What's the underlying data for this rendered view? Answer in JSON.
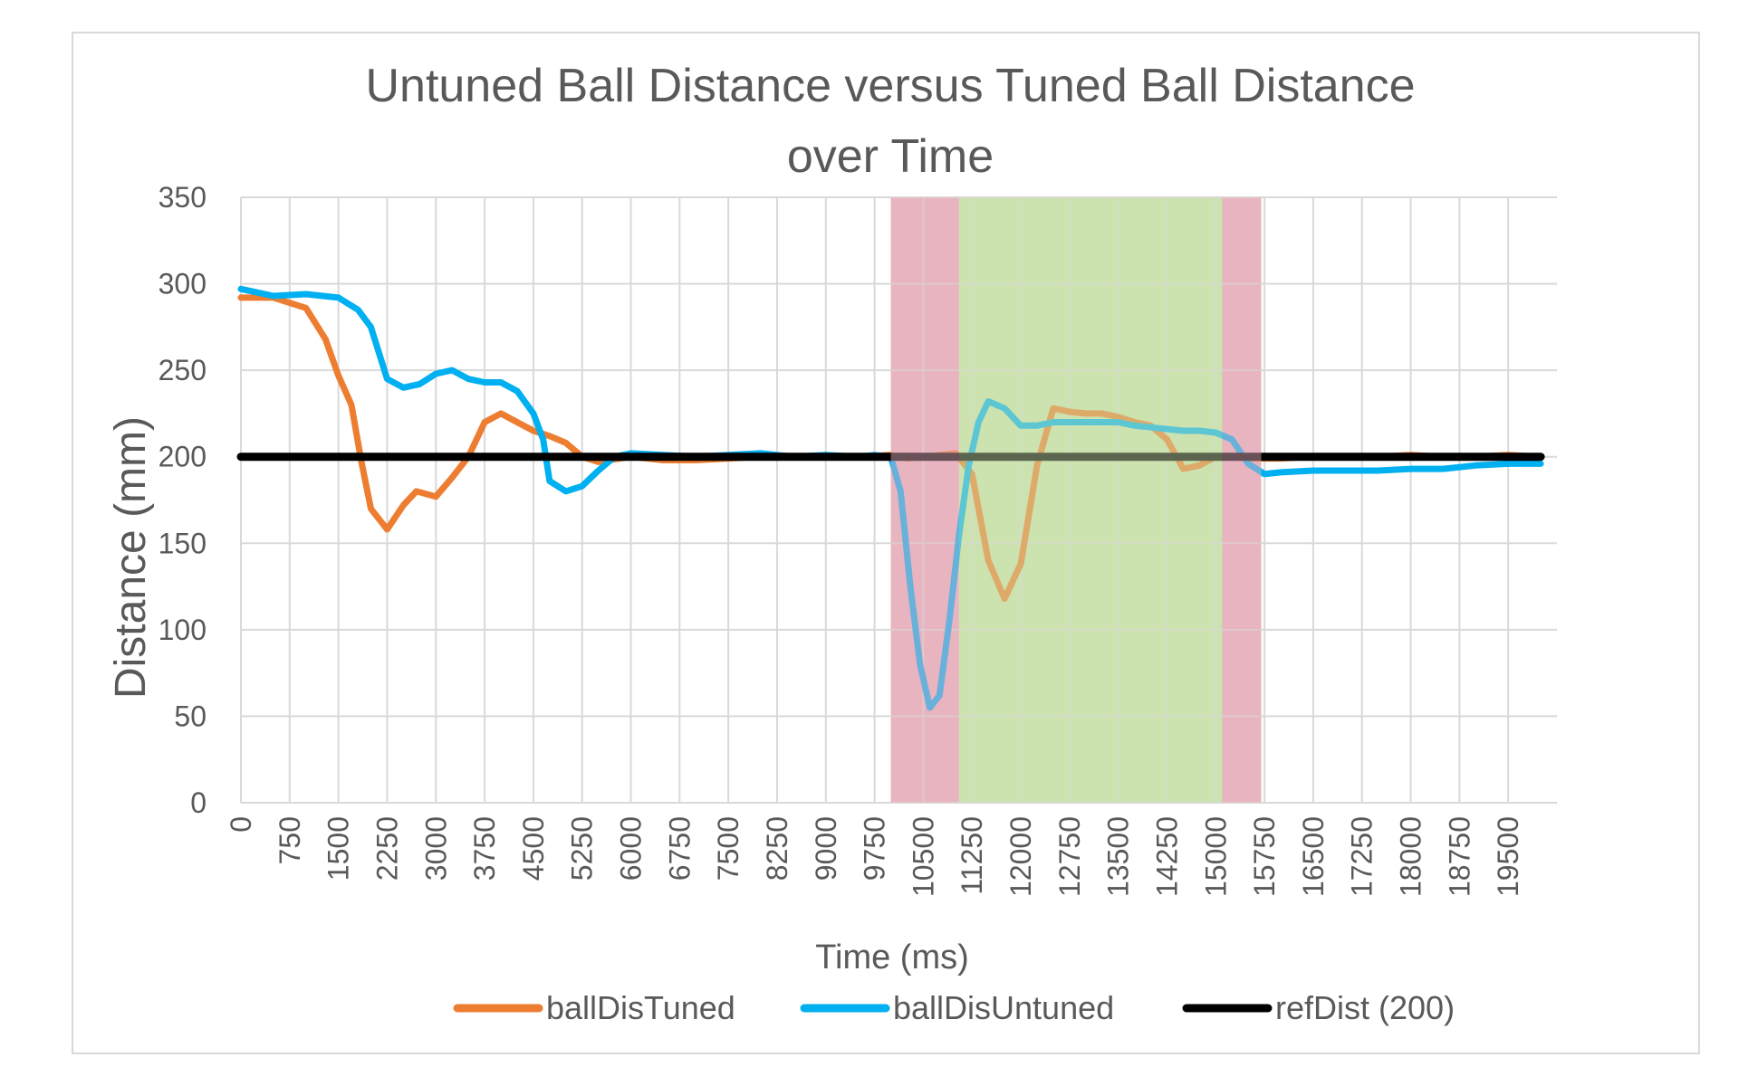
{
  "chart_data": {
    "type": "line",
    "title": "Untuned Ball Distance versus Tuned Ball Distance over Time",
    "title_lines": [
      "Untuned Ball Distance versus Tuned Ball Distance",
      "over Time"
    ],
    "xlabel": "Time (ms)",
    "ylabel": "Distance (mm)",
    "xlim": [
      0,
      20250
    ],
    "ylim": [
      0,
      350
    ],
    "x_ticks": [
      0,
      750,
      1500,
      2250,
      3000,
      3750,
      4500,
      5250,
      6000,
      6750,
      7500,
      8250,
      9000,
      9750,
      10500,
      11250,
      12000,
      12750,
      13500,
      14250,
      15000,
      15750,
      16500,
      17250,
      18000,
      18750,
      19500
    ],
    "y_ticks": [
      0,
      50,
      100,
      150,
      200,
      250,
      300,
      350
    ],
    "grid": true,
    "legend": "bottom",
    "highlight_regions": [
      {
        "x0": 10000,
        "x1": 11050,
        "color": "#e8b4c0"
      },
      {
        "x0": 11050,
        "x1": 15100,
        "color": "#cde2b0"
      },
      {
        "x0": 15100,
        "x1": 15700,
        "color": "#e8b4c0"
      }
    ],
    "series": [
      {
        "name": "ballDisTuned",
        "color": "#ed7d31",
        "x": [
          0,
          500,
          1000,
          1300,
          1500,
          1700,
          1850,
          2000,
          2250,
          2500,
          2700,
          3000,
          3250,
          3500,
          3750,
          4000,
          4250,
          4500,
          4750,
          5000,
          5250,
          5500,
          6000,
          6500,
          7000,
          7500,
          8000,
          8500,
          9000,
          9500,
          10000,
          10250,
          10500,
          10750,
          11000,
          11250,
          11500,
          11750,
          12000,
          12250,
          12500,
          12750,
          13000,
          13250,
          13500,
          13750,
          14000,
          14250,
          14500,
          14750,
          15000,
          15250,
          15500,
          16000,
          16500,
          17000,
          17500,
          18000,
          18500,
          19000,
          19500,
          20000
        ],
        "y": [
          292,
          292,
          286,
          268,
          247,
          230,
          198,
          170,
          158,
          172,
          180,
          177,
          188,
          200,
          220,
          225,
          220,
          215,
          212,
          208,
          200,
          197,
          200,
          198,
          198,
          199,
          200,
          200,
          200,
          200,
          201,
          199,
          200,
          201,
          202,
          190,
          140,
          118,
          138,
          195,
          228,
          226,
          225,
          225,
          223,
          220,
          218,
          210,
          193,
          195,
          200,
          200,
          199,
          199,
          200,
          200,
          200,
          201,
          200,
          200,
          201,
          200
        ]
      },
      {
        "name": "ballDisUntuned",
        "color": "#00b0f0",
        "x": [
          0,
          500,
          1000,
          1500,
          1800,
          2000,
          2250,
          2500,
          2750,
          3000,
          3250,
          3500,
          3750,
          4000,
          4250,
          4500,
          4650,
          4750,
          5000,
          5250,
          5500,
          5750,
          6000,
          6500,
          7000,
          7500,
          8000,
          8500,
          9000,
          9500,
          9750,
          10000,
          10150,
          10300,
          10450,
          10600,
          10750,
          10900,
          11050,
          11200,
          11350,
          11500,
          11750,
          12000,
          12250,
          12500,
          12750,
          13000,
          13250,
          13500,
          13750,
          14000,
          14250,
          14500,
          14750,
          15000,
          15250,
          15500,
          15750,
          16000,
          16500,
          17000,
          17500,
          18000,
          18500,
          19000,
          19500,
          20000
        ],
        "y": [
          297,
          293,
          294,
          292,
          285,
          275,
          245,
          240,
          242,
          248,
          250,
          245,
          243,
          243,
          238,
          225,
          210,
          186,
          180,
          183,
          192,
          200,
          202,
          201,
          200,
          201,
          202,
          200,
          201,
          200,
          201,
          200,
          180,
          125,
          80,
          55,
          62,
          105,
          155,
          195,
          220,
          232,
          228,
          218,
          218,
          220,
          220,
          220,
          220,
          220,
          218,
          217,
          216,
          215,
          215,
          214,
          210,
          196,
          190,
          191,
          192,
          192,
          192,
          193,
          193,
          195,
          196,
          196
        ]
      },
      {
        "name": "refDist (200)",
        "color": "#000000",
        "x": [
          0,
          20000
        ],
        "y": [
          200,
          200
        ]
      }
    ]
  }
}
